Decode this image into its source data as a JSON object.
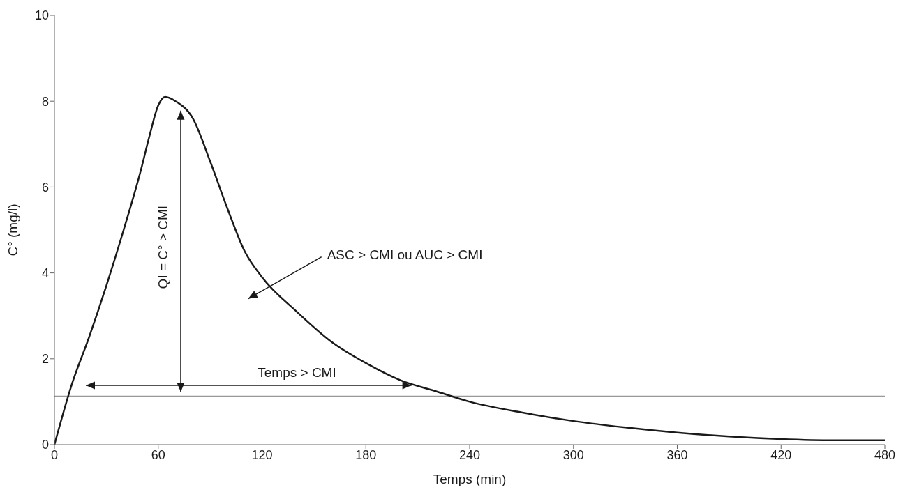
{
  "chart_data": {
    "type": "line",
    "xlabel": "Temps (min)",
    "ylabel": "C° (mg/l)",
    "x": [
      0,
      10,
      20,
      30,
      40,
      50,
      55,
      60,
      64,
      70,
      80,
      90,
      100,
      110,
      120,
      140,
      160,
      180,
      200,
      220,
      240,
      270,
      300,
      330,
      360,
      390,
      420,
      450,
      480
    ],
    "series": [
      {
        "color": "#1a1a1a",
        "values": [
          0,
          1.4,
          2.5,
          3.7,
          5.0,
          6.4,
          7.2,
          7.9,
          8.1,
          8.0,
          7.6,
          6.6,
          5.5,
          4.5,
          3.9,
          3.1,
          2.4,
          1.9,
          1.5,
          1.25,
          1.0,
          0.75,
          0.55,
          0.4,
          0.28,
          0.19,
          0.13,
          0.1,
          0.1
        ]
      }
    ],
    "xlim": [
      0,
      480
    ],
    "xticks": [
      0,
      60,
      120,
      180,
      240,
      300,
      360,
      420,
      480
    ],
    "ylim": [
      0,
      10
    ],
    "yticks": [
      0,
      2,
      4,
      6,
      8,
      10
    ],
    "grid": false,
    "legend": false,
    "marker": "none",
    "line_style": "solid",
    "ref_lines": [
      {
        "axis": "y",
        "value": 1.13,
        "color": "#999999"
      }
    ],
    "annotations": [
      "QI = C° > CMI",
      "Temps > CMI",
      "ASC > CMI ou AUC > CMI"
    ]
  }
}
